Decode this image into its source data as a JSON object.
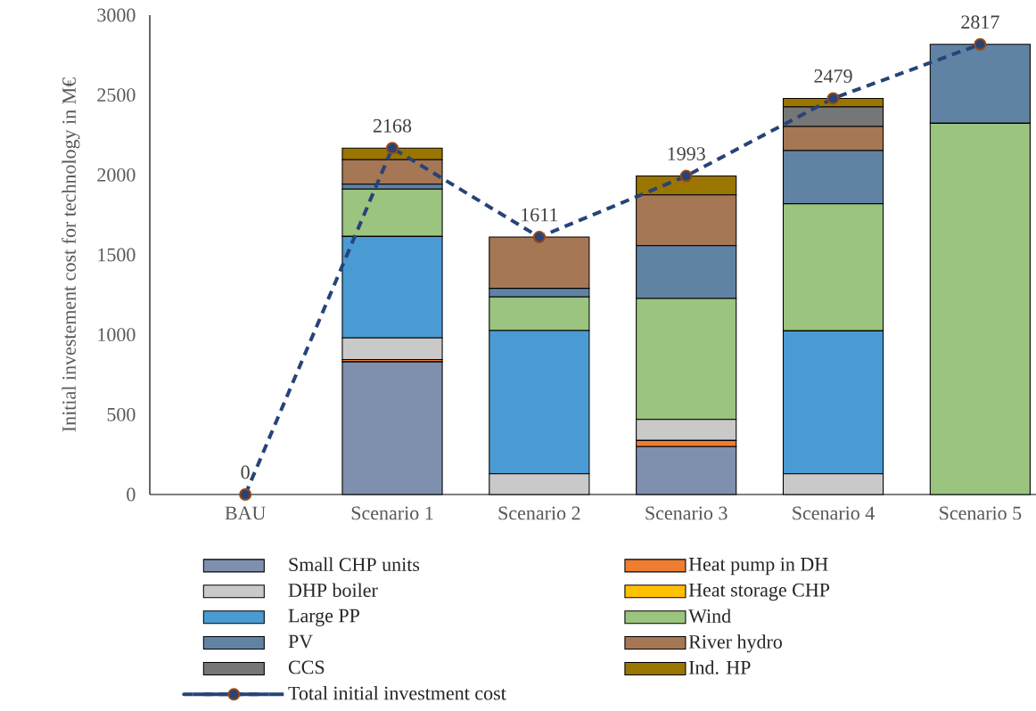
{
  "chart_data": {
    "type": "bar",
    "stacked": true,
    "ylabel": "Initial investement cost for technology in M€",
    "categories": [
      "BAU",
      "Scenario 1",
      "Scenario 2",
      "Scenario 3",
      "Scenario 4",
      "Scenario 5"
    ],
    "ylim": [
      0,
      3000
    ],
    "yticks": [
      0,
      500,
      1000,
      1500,
      2000,
      2500,
      3000
    ],
    "legend": "bottom",
    "series": [
      {
        "name": "Small CHP units",
        "color": "#7f8fae",
        "values": [
          0,
          830,
          0,
          300,
          0,
          0
        ]
      },
      {
        "name": "Heat pump in DH",
        "color": "#ed7d31",
        "values": [
          0,
          15,
          0,
          38,
          0,
          0
        ]
      },
      {
        "name": "DHP boiler",
        "color": "#c9c9c9",
        "values": [
          0,
          135,
          130,
          132,
          130,
          0
        ]
      },
      {
        "name": "Heat storage CHP",
        "color": "#ffc000",
        "values": [
          0,
          0,
          0,
          0,
          0,
          0
        ]
      },
      {
        "name": "Large PP",
        "color": "#4a9bd4",
        "values": [
          0,
          635,
          896,
          0,
          894,
          0
        ]
      },
      {
        "name": "Wind",
        "color": "#9bc47f",
        "values": [
          0,
          296,
          210,
          757,
          796,
          2323
        ]
      },
      {
        "name": "PV",
        "color": "#6183a3",
        "values": [
          0,
          31,
          54,
          330,
          332,
          494
        ]
      },
      {
        "name": "River hydro",
        "color": "#a67754",
        "values": [
          0,
          153,
          321,
          318,
          151,
          0
        ]
      },
      {
        "name": "CCS",
        "color": "#767676",
        "values": [
          0,
          0,
          0,
          0,
          123,
          0
        ]
      },
      {
        "name": "Ind. HP",
        "color": "#9a7500",
        "values": [
          0,
          73,
          0,
          118,
          53,
          0
        ]
      },
      {
        "name": "Total initial investment cost",
        "type": "line",
        "color": "#264478",
        "marker": "circle",
        "line_style": "dashed",
        "values": [
          0,
          2168,
          1611,
          1993,
          2479,
          2817
        ],
        "value_labels": [
          "0",
          "2168",
          "1611",
          "1993",
          "2479",
          "2817"
        ]
      }
    ]
  }
}
